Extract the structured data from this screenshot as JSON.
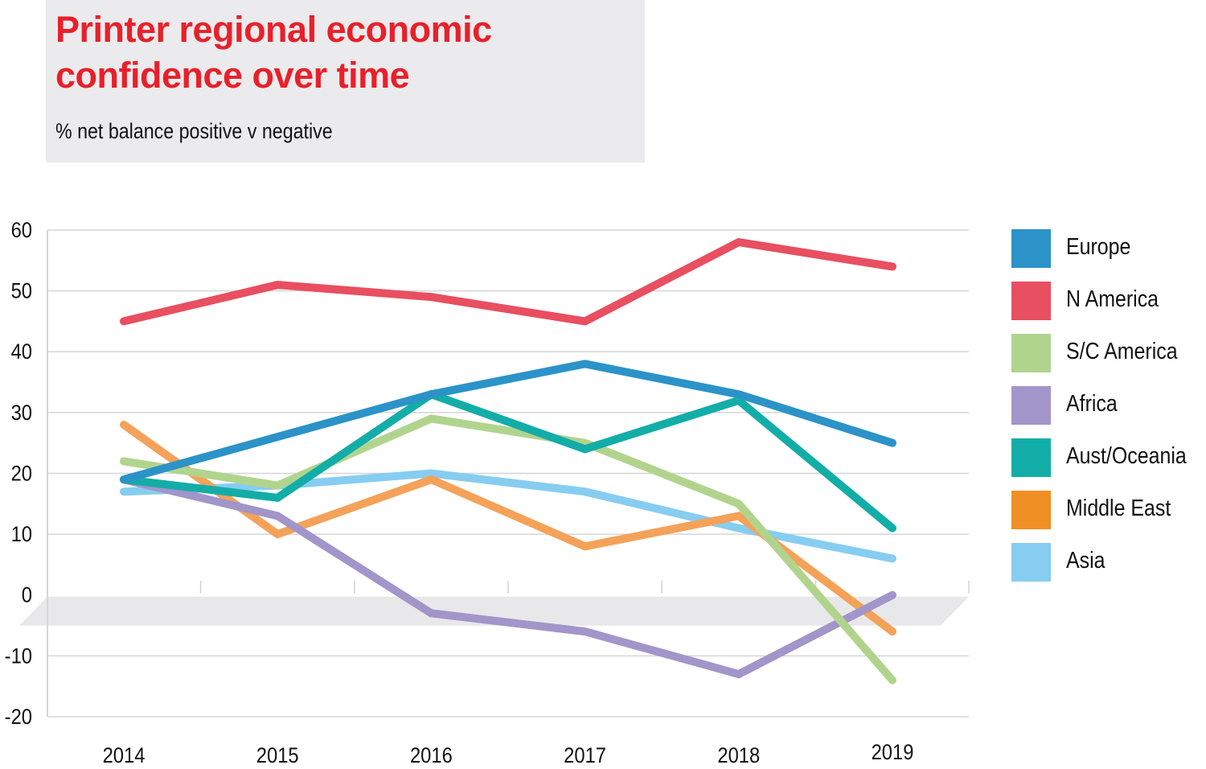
{
  "header": {
    "title_line1": "Printer regional economic",
    "title_line2": "confidence over time",
    "subtitle": "% net balance positive v negative"
  },
  "colors": {
    "title": "#e8202a",
    "grid": "#d6d6d8",
    "zero_band": "#e8e8ea"
  },
  "chart_data": {
    "type": "line",
    "title": "Printer regional economic confidence over time",
    "subtitle": "% net balance positive v negative",
    "xlabel": "",
    "ylabel": "",
    "x": [
      "2014",
      "2015",
      "2016",
      "2017",
      "2018",
      "2019"
    ],
    "ylim": [
      -20,
      60
    ],
    "yticks": [
      60,
      50,
      40,
      30,
      20,
      10,
      0,
      -10,
      -20
    ],
    "ytick_labels": [
      "60",
      "50",
      "40",
      "30",
      "20",
      "10",
      "0",
      "-10",
      "-20"
    ],
    "grid": true,
    "legend_position": "right",
    "series": [
      {
        "name": "Europe",
        "color": "#2b93c8",
        "values": [
          19,
          26,
          33,
          38,
          33,
          25
        ]
      },
      {
        "name": "N America",
        "color": "#e84f60",
        "values": [
          45,
          51,
          49,
          45,
          58,
          54
        ]
      },
      {
        "name": "S/C America",
        "color": "#b1d48d",
        "values": [
          22,
          18,
          29,
          25,
          15,
          -14
        ]
      },
      {
        "name": "Africa",
        "color": "#a295c9",
        "values": [
          19,
          13,
          -3,
          -6,
          -13,
          0
        ]
      },
      {
        "name": "Aust/Oceania",
        "color": "#13ada8",
        "values": [
          19,
          16,
          33,
          24,
          32,
          11
        ]
      },
      {
        "name": "Middle East",
        "color": "#f4a259",
        "values": [
          28,
          10,
          19,
          8,
          13,
          -6
        ]
      },
      {
        "name": "Asia",
        "color": "#86cdf1",
        "values": [
          17,
          18,
          20,
          17,
          11,
          6
        ]
      }
    ],
    "legend_colors": [
      "#2b93c8",
      "#e84f60",
      "#b1d48d",
      "#a295c9",
      "#13ada8",
      "#f08f24",
      "#86cdf1"
    ]
  }
}
